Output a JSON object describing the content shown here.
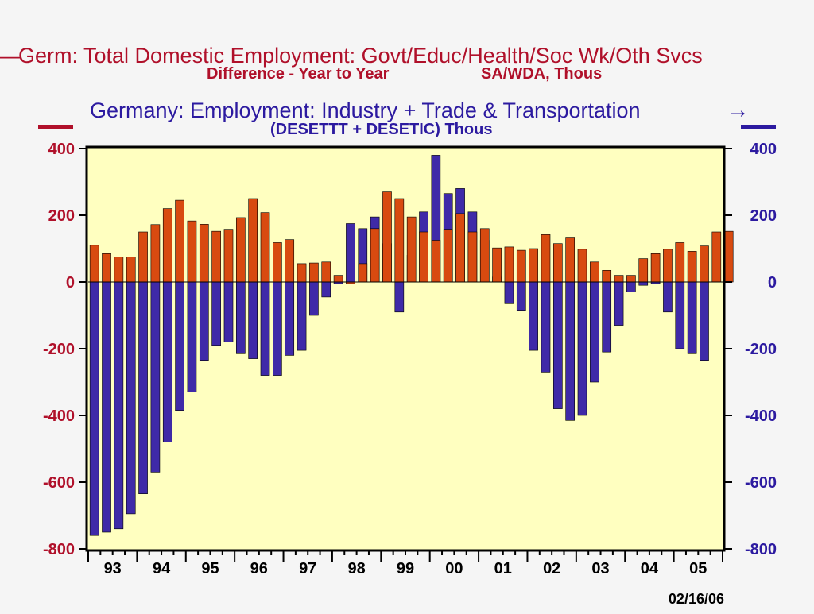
{
  "chart_data": {
    "type": "bar",
    "title_left": "Germ: Total Domestic Employment: Govt/Educ/Health/Soc Wk/Oth Svcs",
    "subtitle_left_a": "Difference - Year to Year",
    "subtitle_left_b": "SA/WDA, Thous",
    "title_right": "Germany: Employment: Industry + Trade & Transportation",
    "subtitle_right": "(DESETTT + DESETIC) Thous",
    "arrow_left": "—",
    "arrow_right": "→",
    "date_stamp": "02/16/06",
    "ylim": [
      -800,
      400
    ],
    "yticks": [
      "400",
      "200",
      "0",
      "-200",
      "-400",
      "-600",
      "-800"
    ],
    "ytick_values": [
      400,
      200,
      0,
      -200,
      -400,
      -600,
      -800
    ],
    "year_labels": [
      "93",
      "94",
      "95",
      "96",
      "97",
      "98",
      "99",
      "00",
      "01",
      "02",
      "03",
      "04",
      "05"
    ],
    "quarters_per_year": 4,
    "colors": {
      "left_series": "#b0102a",
      "right_series": "#2c1aa0",
      "red_bar": "#d84a10",
      "blue_bar": "#3f2aa8",
      "plot_bg": "#ffffc0",
      "page_bg": "#f5f5f5"
    },
    "series": [
      {
        "name": "Germ: Total Domestic Employment: Govt/Educ/Health/Soc Wk/Oth Svcs",
        "axis": "left",
        "values": [
          110,
          85,
          75,
          75,
          150,
          172,
          220,
          245,
          183,
          173,
          152,
          158,
          193,
          250,
          208,
          118,
          127,
          55,
          57,
          60,
          20,
          -5,
          55,
          160,
          270,
          250,
          195,
          150,
          125,
          158,
          205,
          150,
          160,
          102,
          105,
          95,
          100,
          142,
          115,
          132,
          98,
          60,
          35,
          20,
          20,
          70,
          85,
          98,
          118,
          92,
          108,
          150,
          152
        ]
      },
      {
        "name": "Germany: Employment: Industry + Trade & Transportation",
        "axis": "right",
        "values": [
          -760,
          -750,
          -740,
          -695,
          -635,
          -570,
          -480,
          -385,
          -330,
          -235,
          -190,
          -180,
          -215,
          -230,
          -280,
          -280,
          -220,
          -205,
          -100,
          -45,
          -5,
          175,
          160,
          195,
          115,
          -90,
          80,
          210,
          380,
          265,
          280,
          210,
          125,
          15,
          -65,
          -85,
          -205,
          -270,
          -380,
          -415,
          -400,
          -300,
          -210,
          -130,
          -30,
          -10,
          -5,
          -90,
          -200,
          -215,
          -235
        ]
      }
    ]
  }
}
